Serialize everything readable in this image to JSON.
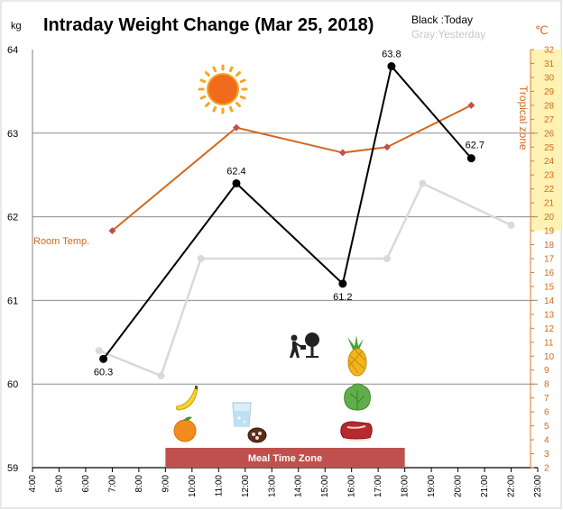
{
  "chart_data": {
    "type": "line",
    "title": "Intraday Weight Change (Mar 25, 2018)",
    "legend_today": "Black :Today",
    "legend_yesterday": "Gray:Yesterday",
    "left_unit": "kg",
    "right_unit": "℃",
    "y_left_range": [
      59,
      64
    ],
    "y_left_ticks": [
      "59",
      "60",
      "61",
      "62",
      "63",
      "64"
    ],
    "y_right_range": [
      2,
      32
    ],
    "x_range": [
      "4:00",
      "23:00"
    ],
    "x_ticks": [
      "4:00",
      "5:00",
      "6:00",
      "7:00",
      "8:00",
      "9:00",
      "10:00",
      "11:00",
      "12:00",
      "13:00",
      "14:00",
      "15:00",
      "16:00",
      "17:00",
      "18:00",
      "19:00",
      "20:00",
      "21:00",
      "22:00",
      "23:00"
    ],
    "tropical_zone": {
      "label": "Tropical zone",
      "range": [
        19,
        32
      ],
      "color": "#fff2b3"
    },
    "meal_zone": {
      "label": "Meal Time Zone",
      "range": [
        "9:00",
        "18:00"
      ],
      "color": "#c0504d"
    },
    "series": [
      {
        "key": "today",
        "axis": "left",
        "color": "#000000",
        "x": [
          "6:40",
          "11:40",
          "15:40",
          "17:30",
          "20:30"
        ],
        "values": [
          60.3,
          62.4,
          61.2,
          63.8,
          62.7
        ],
        "labels": [
          "60.3",
          "62.4",
          "61.2",
          "63.8",
          "62.7"
        ]
      },
      {
        "key": "yesterday",
        "axis": "left",
        "color": "#d9d9d9",
        "x": [
          "6:30",
          "8:50",
          "10:20",
          "17:20",
          "18:40",
          "22:00"
        ],
        "values": [
          60.4,
          60.1,
          61.5,
          61.5,
          62.4,
          61.9
        ]
      },
      {
        "key": "room_temp",
        "axis": "right",
        "color": "#d2691e",
        "label": "Room Temp.",
        "x": [
          "7:00",
          "11:40",
          "15:40",
          "17:20",
          "20:30"
        ],
        "values": [
          19,
          26.4,
          24.6,
          25,
          28
        ]
      }
    ],
    "icons": [
      "sun-icon",
      "banana-icon",
      "orange-icon",
      "water-glass-icon",
      "chocolate-icon",
      "gardening-icon",
      "pineapple-icon",
      "lettuce-icon",
      "steak-icon"
    ]
  }
}
